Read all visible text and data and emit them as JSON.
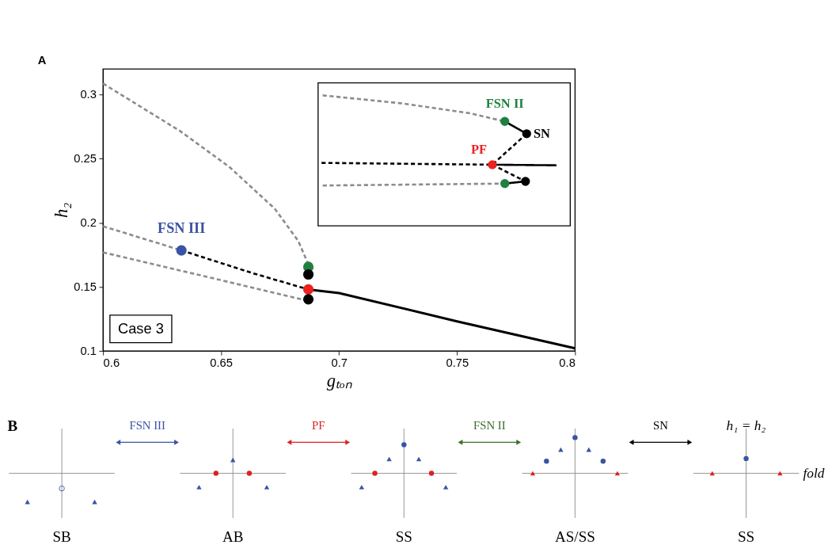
{
  "chart_data": [
    {
      "type": "line",
      "xlabel": "gₜₒₙ",
      "ylabel": "h₂",
      "xlim": [
        0.6,
        0.8
      ],
      "ylim": [
        0.1,
        0.32
      ],
      "xticks": [
        0.6,
        0.65,
        0.7,
        0.75,
        0.8
      ],
      "yticks": [
        0.1,
        0.15,
        0.2,
        0.25,
        0.3
      ],
      "grid": false,
      "annotations": [
        "A",
        "Case 3",
        {
          "text": "FSN III",
          "x": 0.6332,
          "y": 0.1785
        }
      ],
      "series": [
        {
          "color": "#8c8c8c",
          "line_style": "dashed",
          "x": [
            0.6,
            0.6326,
            0.6536,
            0.6728,
            0.6827,
            0.6865,
            0.687
          ],
          "values": [
            0.3087,
            0.2717,
            0.2435,
            0.2109,
            0.1859,
            0.1696,
            0.1656
          ]
        },
        {
          "color": "#8c8c8c",
          "line_style": "dashed",
          "x": [
            0.6,
            0.6332
          ],
          "values": [
            0.1973,
            0.1785
          ]
        },
        {
          "color": "#8c8c8c",
          "line_style": "dashed",
          "x": [
            0.6,
            0.6437,
            0.687
          ],
          "values": [
            0.1769,
            0.158,
            0.139
          ]
        },
        {
          "color": "#000000",
          "line_style": "dashed",
          "x": [
            0.6332,
            0.6632,
            0.687
          ],
          "values": [
            0.1785,
            0.1608,
            0.148
          ]
        },
        {
          "color": "#000000",
          "line_style": "solid",
          "x": [
            0.687,
            0.7,
            0.75,
            0.8
          ],
          "values": [
            0.148,
            0.1452,
            0.1231,
            0.102
          ]
        },
        {
          "type": "scatter",
          "marker": "circle",
          "x": [
            0.6332,
            0.687,
            0.687,
            0.687,
            0.687
          ],
          "values": [
            0.1785,
            0.1656,
            0.1597,
            0.148,
            0.1403
          ],
          "colors": [
            "#3a53a4",
            "#208040",
            "#000000",
            "#ee2020",
            "#000000"
          ]
        }
      ]
    },
    {
      "type": "other",
      "annotations": [
        "FSN II",
        "SN",
        "PF"
      ],
      "colors": [
        "#208040",
        "#000000",
        "#ee2020"
      ]
    },
    {
      "type": "other",
      "categories": [
        "SB",
        "AB",
        "SS",
        "AS/SS",
        "SS"
      ],
      "annotations": [
        "B",
        "FSN III",
        "PF",
        "FSN II",
        "SN",
        "h₁ = h₂",
        "fold"
      ],
      "colors": [
        "#3a53a4",
        "#dd2222",
        "#3d6e2a",
        "#000000"
      ]
    }
  ]
}
